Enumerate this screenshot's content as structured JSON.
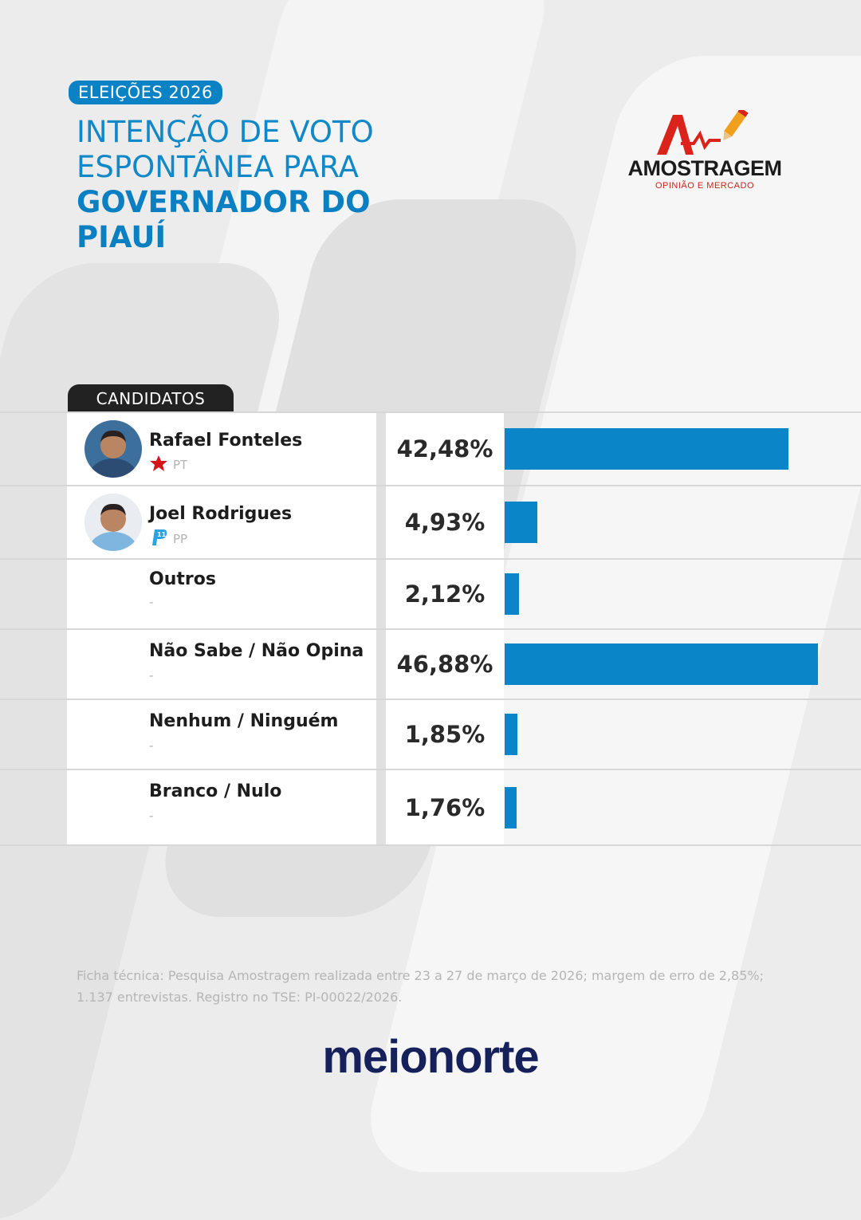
{
  "header": {
    "tag": "ELEIÇÕES 2026",
    "title_line1": "INTENÇÃO DE VOTO",
    "title_line2": "ESPONTÂNEA PARA",
    "title_line3": "GOVERNADOR DO",
    "title_line4": "PIAUÍ"
  },
  "logo": {
    "brand": "AMOSTRAGEM",
    "tagline": "OPINIÃO E MERCADO"
  },
  "table": {
    "header": "CANDIDATOS"
  },
  "colors": {
    "accent": "#0a86c8",
    "title": "#1188c8",
    "dark": "#222222",
    "pt_red": "#d7141a",
    "pp_blue": "#2aa4e0"
  },
  "chart_data": {
    "type": "bar",
    "categories": [
      "Rafael Fonteles",
      "Joel Rodrigues",
      "Outros",
      "Não Sabe / Não Opina",
      "Nenhum / Ninguém",
      "Branco / Nulo"
    ],
    "values": [
      42.48,
      4.93,
      2.12,
      46.88,
      1.85,
      1.76
    ],
    "value_labels": [
      "42,48%",
      "4,93%",
      "2,12%",
      "46,88%",
      "1,85%",
      "1,76%"
    ],
    "parties": [
      "PT",
      "PP",
      "-",
      "-",
      "-",
      "-"
    ],
    "party_icons": [
      "pt-star-icon",
      "pp-logo-icon",
      "",
      "",
      "",
      ""
    ],
    "orientation": "horizontal",
    "xlim": [
      0,
      50
    ]
  },
  "footer": {
    "note": "Ficha técnica: Pesquisa Amostragem realizada entre 23 a 27 de março de 2026; margem de erro de 2,85%; 1.137 entrevistas. Registro no TSE: PI-00022/2026.",
    "brand": "meionorte"
  }
}
